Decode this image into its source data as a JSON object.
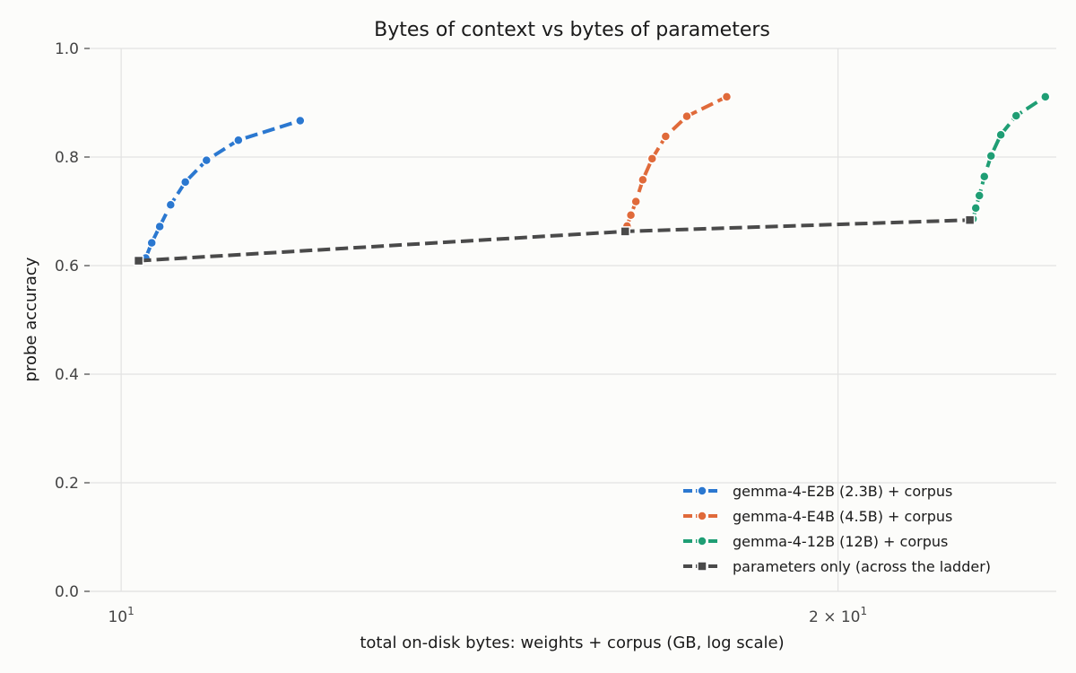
{
  "chart_data": {
    "type": "line",
    "title": "Bytes of context vs bytes of parameters",
    "xlabel": "total on-disk bytes: weights + corpus (GB, log scale)",
    "ylabel": "probe accuracy",
    "xscale": "log",
    "xlim": [
      9.7,
      24.7
    ],
    "ylim": [
      0.0,
      1.0
    ],
    "y_ticks": [
      "0.0",
      "0.2",
      "0.4",
      "0.6",
      "0.8",
      "1.0"
    ],
    "x_ticks": [
      {
        "value": 10,
        "base": "10",
        "exp": "1",
        "mult": ""
      },
      {
        "value": 20,
        "base": "10",
        "exp": "1",
        "mult": "2 × "
      }
    ],
    "grid": "horizontal",
    "legend_position": "lower-right",
    "series": [
      {
        "name": "gemma-4-E2B (2.3B) + corpus",
        "color": "#2b78d0",
        "marker": "circle",
        "x": [
          10.24,
          10.3,
          10.38,
          10.49,
          10.64,
          10.86,
          11.2,
          11.89
        ],
        "y": [
          0.614,
          0.642,
          0.672,
          0.712,
          0.754,
          0.794,
          0.831,
          0.867
        ]
      },
      {
        "name": "gemma-4-E4B (4.5B) + corpus",
        "color": "#e06a3a",
        "marker": "circle",
        "x": [
          16.31,
          16.37,
          16.45,
          16.56,
          16.71,
          16.93,
          17.28,
          17.96
        ],
        "y": [
          0.673,
          0.693,
          0.718,
          0.758,
          0.797,
          0.838,
          0.875,
          0.911
        ]
      },
      {
        "name": "gemma-4-12B (12B) + corpus",
        "color": "#1f9e74",
        "marker": "circle",
        "x": [
          22.79,
          22.85,
          22.93,
          23.04,
          23.19,
          23.41,
          23.76,
          24.44
        ],
        "y": [
          0.686,
          0.706,
          0.729,
          0.764,
          0.802,
          0.841,
          0.876,
          0.911
        ]
      },
      {
        "name": "parameters only (across the ladder)",
        "color": "#4a4a4a",
        "marker": "square",
        "x": [
          10.17,
          16.28,
          22.72
        ],
        "y": [
          0.609,
          0.663,
          0.684
        ]
      }
    ]
  }
}
